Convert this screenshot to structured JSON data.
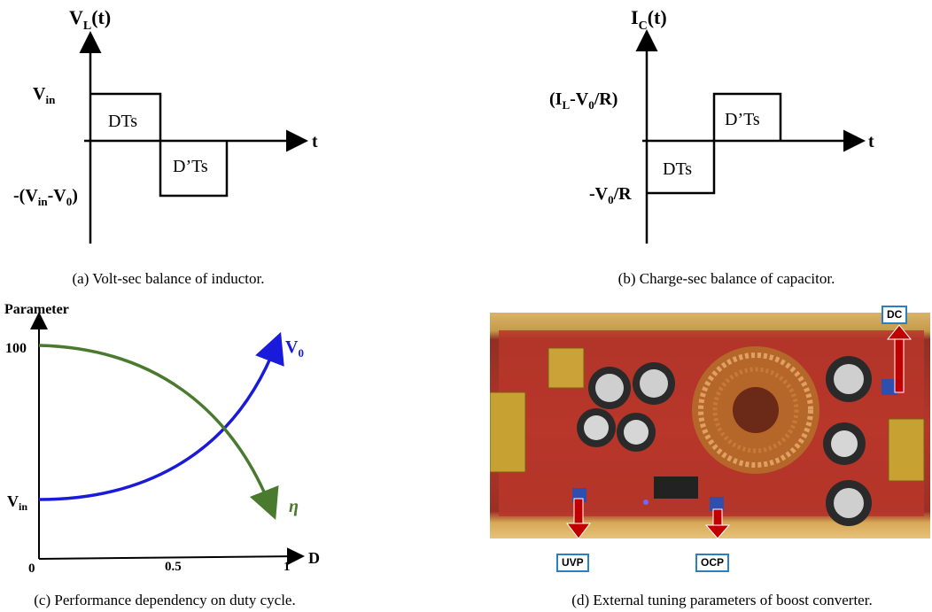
{
  "panel_a": {
    "y_axis_label": "V",
    "y_axis_sub": "L",
    "y_axis_tail": "(t)",
    "x_axis_label": "t",
    "level_high": "V",
    "level_high_sub": "in",
    "level_low_a": "-(V",
    "level_low_sub1": "in",
    "level_low_b": "-V",
    "level_low_sub2": "0",
    "level_low_c": ")",
    "region_1": "DTs",
    "region_2": "D’Ts",
    "caption": "(a) Volt-sec balance of inductor."
  },
  "panel_b": {
    "y_axis_label": "I",
    "y_axis_sub": "C",
    "y_axis_tail": "(t)",
    "x_axis_label": "t",
    "level_high_a": "(I",
    "level_high_sub1": "L",
    "level_high_b": "-V",
    "level_high_sub2": "0",
    "level_high_c": "/R)",
    "level_low_a": "-V",
    "level_low_sub": "0",
    "level_low_b": "/R",
    "region_1": "DTs",
    "region_2": "D’Ts",
    "caption": "(b) Charge-sec balance of capacitor."
  },
  "panel_c": {
    "y_axis_label": "Parameter",
    "y_tick_top": "100",
    "y_tick_vin": "V",
    "y_tick_vin_sub": "in",
    "x_axis_label": "D",
    "x_tick_0": "0",
    "x_tick_mid": "0.5",
    "x_tick_1": "1",
    "curve_v0_label": "V",
    "curve_v0_sub": "0",
    "curve_eta_label": "η",
    "color_v0": "#1a1adb",
    "color_eta": "#4a7a2e",
    "caption": "(c) Performance dependency on duty cycle."
  },
  "panel_d": {
    "tag_dc": "DC",
    "tag_uvp": "UVP",
    "tag_ocp": "OCP",
    "arrow_color": "#c00000",
    "caption": "(d) External tuning parameters of boost converter."
  }
}
